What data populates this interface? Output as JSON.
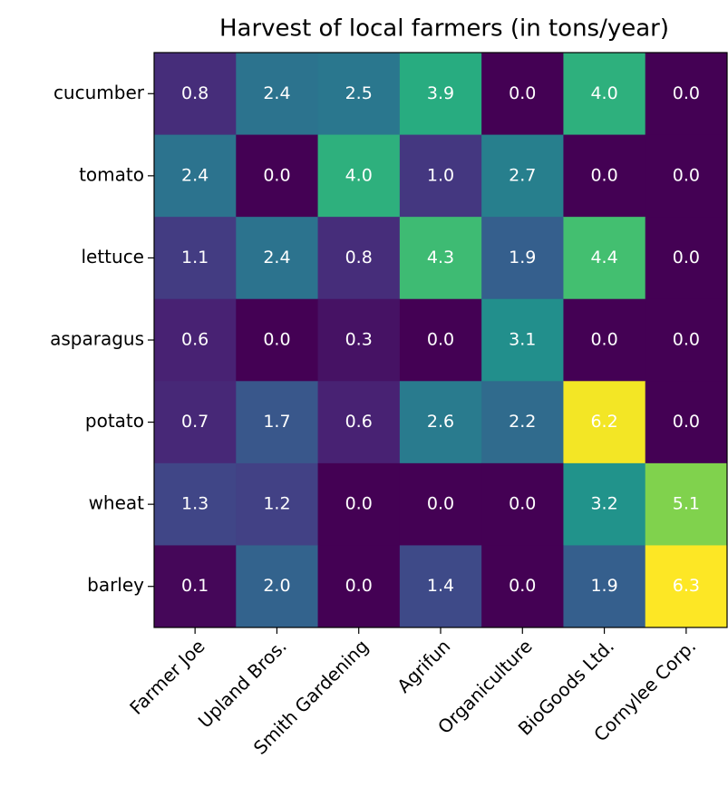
{
  "chart_data": {
    "type": "heatmap",
    "title": "Harvest of local farmers (in tons/year)",
    "rows": [
      "cucumber",
      "tomato",
      "lettuce",
      "asparagus",
      "potato",
      "wheat",
      "barley"
    ],
    "columns": [
      "Farmer Joe",
      "Upland Bros.",
      "Smith Gardening",
      "Agrifun",
      "Organiculture",
      "BioGoods Ltd.",
      "Cornylee Corp."
    ],
    "values": [
      [
        0.8,
        2.4,
        2.5,
        3.9,
        0,
        4,
        0
      ],
      [
        2.4,
        0,
        4,
        1,
        2.7,
        0,
        0
      ],
      [
        1.1,
        2.4,
        0.8,
        4.3,
        1.9,
        4.4,
        0
      ],
      [
        0.6,
        0,
        0.3,
        0,
        3.1,
        0,
        0
      ],
      [
        0.7,
        1.7,
        0.6,
        2.6,
        2.2,
        6.2,
        0
      ],
      [
        1.3,
        1.2,
        0,
        0,
        0,
        3.2,
        5.1
      ],
      [
        0.1,
        2,
        0,
        1.4,
        0,
        1.9,
        6.3
      ]
    ],
    "value_labels": [
      [
        "0.8",
        "2.4",
        "2.5",
        "3.9",
        "0.0",
        "4.0",
        "0.0"
      ],
      [
        "2.4",
        "0.0",
        "4.0",
        "1.0",
        "2.7",
        "0.0",
        "0.0"
      ],
      [
        "1.1",
        "2.4",
        "0.8",
        "4.3",
        "1.9",
        "4.4",
        "0.0"
      ],
      [
        "0.6",
        "0.0",
        "0.3",
        "0.0",
        "3.1",
        "0.0",
        "0.0"
      ],
      [
        "0.7",
        "1.7",
        "0.6",
        "2.6",
        "2.2",
        "6.2",
        "0.0"
      ],
      [
        "1.3",
        "1.2",
        "0.0",
        "0.0",
        "0.0",
        "3.2",
        "5.1"
      ],
      [
        "0.1",
        "2.0",
        "0.0",
        "1.4",
        "0.0",
        "1.9",
        "6.3"
      ]
    ],
    "colormap": "viridis",
    "label_color": "#ffffff"
  }
}
